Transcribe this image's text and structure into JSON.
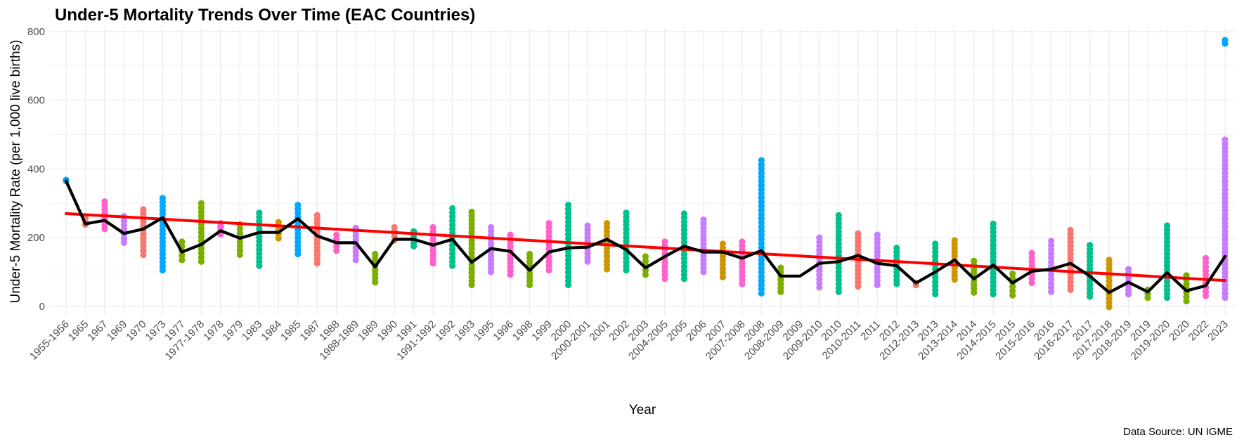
{
  "chart_data": {
    "type": "scatter",
    "title": "Under-5 Mortality Trends Over Time (EAC Countries)",
    "xlabel": "Year",
    "ylabel": "Under-5 Mortality Rate (per 1,000 live births)",
    "caption": "Data Source: UN IGME",
    "ylim": [
      -25,
      810
    ],
    "yticks": [
      0,
      200,
      400,
      600,
      800
    ],
    "grid": true,
    "legend": "none",
    "colors": {
      "mean_line": "#000000",
      "trend_line": "#ff0000"
    },
    "categories": [
      "1955-1956",
      "1965",
      "1967",
      "1969",
      "1970",
      "1973",
      "1977",
      "1977-1978",
      "1978",
      "1979",
      "1983",
      "1984",
      "1985",
      "1987",
      "1988",
      "1988-1989",
      "1989",
      "1990",
      "1991",
      "1991-1992",
      "1992",
      "1993",
      "1995",
      "1996",
      "1998",
      "1999",
      "2000",
      "2000-2001",
      "2001",
      "2002",
      "2003",
      "2004-2005",
      "2005",
      "2006",
      "2007",
      "2007-2008",
      "2008",
      "2008-2009",
      "2009",
      "2009-2010",
      "2010",
      "2010-2011",
      "2011",
      "2012",
      "2012-2013",
      "2013",
      "2013-2014",
      "2014",
      "2014-2015",
      "2015",
      "2015-2016",
      "2016",
      "2016-2017",
      "2017",
      "2017-2018",
      "2018-2019",
      "2019",
      "2019-2020",
      "2020",
      "2022",
      "2023"
    ],
    "point_ranges": [
      {
        "category": "1955-1956",
        "min": 365,
        "max": 368,
        "color": "#00a9ff"
      },
      {
        "category": "1965",
        "min": 238,
        "max": 258,
        "color": "#f8766d"
      },
      {
        "category": "1967",
        "min": 225,
        "max": 305,
        "color": "#ff61cc"
      },
      {
        "category": "1969",
        "min": 185,
        "max": 262,
        "color": "#c77cff"
      },
      {
        "category": "1970",
        "min": 150,
        "max": 282,
        "color": "#f8766d"
      },
      {
        "category": "1973",
        "min": 105,
        "max": 315,
        "color": "#00a9ff"
      },
      {
        "category": "1977",
        "min": 135,
        "max": 188,
        "color": "#7cae00"
      },
      {
        "category": "1977-1978",
        "min": 130,
        "max": 300,
        "color": "#7cae00"
      },
      {
        "category": "1978",
        "min": 210,
        "max": 242,
        "color": "#ff61cc"
      },
      {
        "category": "1979",
        "min": 150,
        "max": 238,
        "color": "#7cae00"
      },
      {
        "category": "1983",
        "min": 118,
        "max": 272,
        "color": "#00c08b"
      },
      {
        "category": "1984",
        "min": 198,
        "max": 245,
        "color": "#cd9600"
      },
      {
        "category": "1985",
        "min": 152,
        "max": 295,
        "color": "#00a9ff"
      },
      {
        "category": "1987",
        "min": 125,
        "max": 265,
        "color": "#f8766d"
      },
      {
        "category": "1988",
        "min": 162,
        "max": 208,
        "color": "#ff61cc"
      },
      {
        "category": "1988-1989",
        "min": 135,
        "max": 228,
        "color": "#c77cff"
      },
      {
        "category": "1989",
        "min": 70,
        "max": 152,
        "color": "#7cae00"
      },
      {
        "category": "1990",
        "min": 192,
        "max": 230,
        "color": "#f8766d"
      },
      {
        "category": "1991",
        "min": 175,
        "max": 218,
        "color": "#00c08b"
      },
      {
        "category": "1991-1992",
        "min": 125,
        "max": 230,
        "color": "#ff61cc"
      },
      {
        "category": "1992",
        "min": 118,
        "max": 285,
        "color": "#00c08b"
      },
      {
        "category": "1993",
        "min": 62,
        "max": 275,
        "color": "#7cae00"
      },
      {
        "category": "1995",
        "min": 100,
        "max": 230,
        "color": "#c77cff"
      },
      {
        "category": "1996",
        "min": 92,
        "max": 208,
        "color": "#ff61cc"
      },
      {
        "category": "1998",
        "min": 62,
        "max": 152,
        "color": "#7cae00"
      },
      {
        "category": "1999",
        "min": 105,
        "max": 242,
        "color": "#ff61cc"
      },
      {
        "category": "2000",
        "min": 62,
        "max": 295,
        "color": "#00c08b"
      },
      {
        "category": "2000-2001",
        "min": 130,
        "max": 235,
        "color": "#c77cff"
      },
      {
        "category": "2001",
        "min": 108,
        "max": 242,
        "color": "#cd9600"
      },
      {
        "category": "2002",
        "min": 105,
        "max": 272,
        "color": "#00c08b"
      },
      {
        "category": "2003",
        "min": 92,
        "max": 145,
        "color": "#7cae00"
      },
      {
        "category": "2004-2005",
        "min": 80,
        "max": 188,
        "color": "#ff61cc"
      },
      {
        "category": "2005",
        "min": 80,
        "max": 270,
        "color": "#00c08b"
      },
      {
        "category": "2006",
        "min": 100,
        "max": 252,
        "color": "#c77cff"
      },
      {
        "category": "2007",
        "min": 85,
        "max": 182,
        "color": "#cd9600"
      },
      {
        "category": "2007-2008",
        "min": 65,
        "max": 188,
        "color": "#ff61cc"
      },
      {
        "category": "2008",
        "min": 38,
        "max": 425,
        "color": "#00a9ff"
      },
      {
        "category": "2008-2009",
        "min": 42,
        "max": 112,
        "color": "#7cae00"
      },
      {
        "category": "2009-2010",
        "min": 55,
        "max": 200,
        "color": "#c77cff"
      },
      {
        "category": "2010",
        "min": 42,
        "max": 265,
        "color": "#00c08b"
      },
      {
        "category": "2010-2011",
        "min": 58,
        "max": 212,
        "color": "#f8766d"
      },
      {
        "category": "2011",
        "min": 62,
        "max": 208,
        "color": "#c77cff"
      },
      {
        "category": "2012",
        "min": 65,
        "max": 170,
        "color": "#00c08b"
      },
      {
        "category": "2012-2013",
        "min": 62,
        "max": 68,
        "color": "#f8766d"
      },
      {
        "category": "2013",
        "min": 35,
        "max": 182,
        "color": "#00c08b"
      },
      {
        "category": "2013-2014",
        "min": 78,
        "max": 192,
        "color": "#cd9600"
      },
      {
        "category": "2014",
        "min": 40,
        "max": 132,
        "color": "#7cae00"
      },
      {
        "category": "2014-2015",
        "min": 35,
        "max": 240,
        "color": "#00c08b"
      },
      {
        "category": "2015",
        "min": 32,
        "max": 95,
        "color": "#7cae00"
      },
      {
        "category": "2015-2016",
        "min": 68,
        "max": 155,
        "color": "#ff61cc"
      },
      {
        "category": "2016",
        "min": 42,
        "max": 190,
        "color": "#c77cff"
      },
      {
        "category": "2016-2017",
        "min": 48,
        "max": 222,
        "color": "#f8766d"
      },
      {
        "category": "2017",
        "min": 28,
        "max": 178,
        "color": "#00c08b"
      },
      {
        "category": "2017-2018",
        "min": -2,
        "max": 135,
        "color": "#cd9600"
      },
      {
        "category": "2018-2019",
        "min": 35,
        "max": 108,
        "color": "#c77cff"
      },
      {
        "category": "2019",
        "min": 25,
        "max": 48,
        "color": "#7cae00"
      },
      {
        "category": "2019-2020",
        "min": 25,
        "max": 235,
        "color": "#00c08b"
      },
      {
        "category": "2020",
        "min": 15,
        "max": 90,
        "color": "#7cae00"
      },
      {
        "category": "2022",
        "min": 30,
        "max": 140,
        "color": "#ff61cc"
      },
      {
        "category": "2023",
        "min": 25,
        "max": 485,
        "color": "#c77cff"
      }
    ],
    "outliers": [
      {
        "category": "2023",
        "y": 765,
        "color": "#00a9ff"
      },
      {
        "category": "2023",
        "y": 775,
        "color": "#00a9ff"
      }
    ],
    "mean_series": [
      365,
      240,
      250,
      212,
      225,
      258,
      158,
      180,
      220,
      198,
      215,
      215,
      255,
      205,
      185,
      185,
      115,
      195,
      195,
      178,
      195,
      128,
      168,
      160,
      105,
      158,
      170,
      172,
      195,
      165,
      112,
      145,
      175,
      158,
      158,
      140,
      162,
      88,
      88,
      125,
      130,
      148,
      125,
      118,
      68,
      100,
      135,
      80,
      120,
      68,
      102,
      108,
      125,
      88,
      40,
      70,
      42,
      98,
      45,
      60,
      145
    ],
    "trend_line": {
      "start": 270,
      "end": 75
    }
  }
}
